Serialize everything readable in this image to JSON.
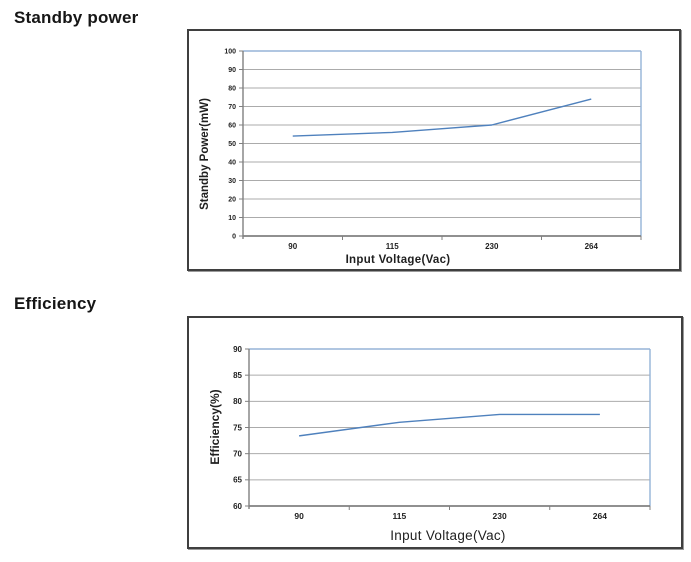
{
  "sections": [
    {
      "title": "Standby power"
    },
    {
      "title": "Efficiency"
    }
  ],
  "chart_data": [
    {
      "type": "line",
      "title": "Standby power",
      "categories": [
        "90",
        "115",
        "230",
        "264"
      ],
      "series": [
        {
          "name": "Standby Power",
          "values": [
            54,
            56,
            60,
            74
          ]
        }
      ],
      "xlabel": "Input Voltage(Vac)",
      "ylabel": "Standby Power(mW)",
      "ylim": [
        0,
        100
      ],
      "ytick_step": 10,
      "grid": true,
      "legend": "none"
    },
    {
      "type": "line",
      "title": "Efficiency",
      "categories": [
        "90",
        "115",
        "230",
        "264"
      ],
      "series": [
        {
          "name": "Efficiency",
          "values": [
            73.4,
            76,
            77.5,
            77.5
          ]
        }
      ],
      "xlabel": "Input Voltage(Vac)",
      "ylabel": "Efficiency(%)",
      "ylim": [
        60,
        90
      ],
      "ytick_step": 5,
      "grid": true,
      "legend": "none"
    }
  ],
  "colors": {
    "line": "#4F81BD",
    "grid": "#ABABAB",
    "plot_border": "#95B3D7",
    "axis": "#808080",
    "tick_text": "#1f1f1f",
    "title_text": "#161616"
  }
}
